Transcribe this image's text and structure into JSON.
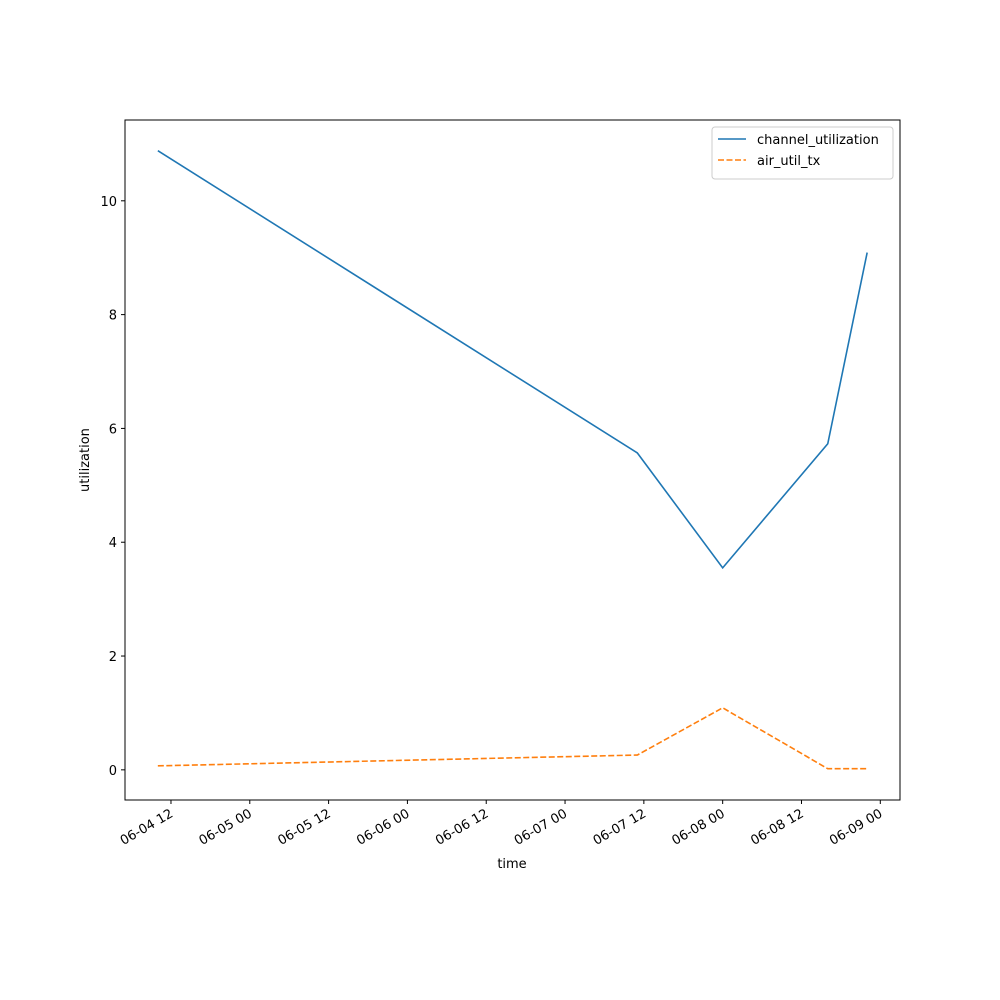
{
  "chart_data": {
    "type": "line",
    "x_label": "time",
    "y_label": "utilization",
    "x": [
      "06-04 10",
      "06-07 11",
      "06-08 00",
      "06-08 16",
      "06-08 22"
    ],
    "series": [
      {
        "name": "channel_utilization",
        "color": "#1f77b4",
        "dash": "solid",
        "values": [
          10.88,
          5.57,
          3.55,
          5.73,
          9.09
        ]
      },
      {
        "name": "air_util_tx",
        "color": "#ff7f0e",
        "dash": "dashed",
        "values": [
          0.07,
          0.26,
          1.09,
          0.02,
          0.02
        ]
      }
    ],
    "xlim": [
      "06-04 05",
      "06-09 03"
    ],
    "xticks": [
      "06-04 12",
      "06-05 00",
      "06-05 12",
      "06-06 00",
      "06-06 12",
      "06-07 00",
      "06-07 12",
      "06-08 00",
      "06-08 12",
      "06-09 00"
    ],
    "ylim": [
      -0.53,
      11.42
    ],
    "yticks": [
      0,
      2,
      4,
      6,
      8,
      10
    ],
    "legend": "upper right",
    "grid": false
  }
}
